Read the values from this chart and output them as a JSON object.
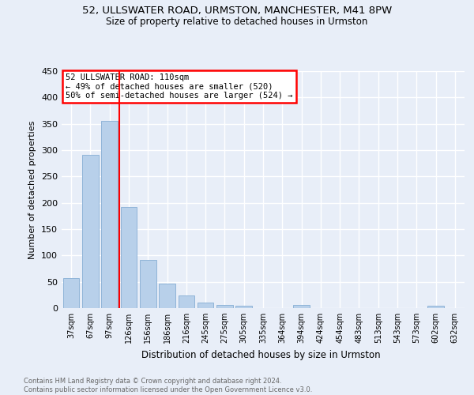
{
  "title1": "52, ULLSWATER ROAD, URMSTON, MANCHESTER, M41 8PW",
  "title2": "Size of property relative to detached houses in Urmston",
  "xlabel": "Distribution of detached houses by size in Urmston",
  "ylabel": "Number of detached properties",
  "footnote": "Contains HM Land Registry data © Crown copyright and database right 2024.\nContains public sector information licensed under the Open Government Licence v3.0.",
  "bar_labels": [
    "37sqm",
    "67sqm",
    "97sqm",
    "126sqm",
    "156sqm",
    "186sqm",
    "216sqm",
    "245sqm",
    "275sqm",
    "305sqm",
    "335sqm",
    "364sqm",
    "394sqm",
    "424sqm",
    "454sqm",
    "483sqm",
    "513sqm",
    "543sqm",
    "573sqm",
    "602sqm",
    "632sqm"
  ],
  "bar_values": [
    57,
    291,
    355,
    192,
    91,
    46,
    24,
    10,
    6,
    5,
    0,
    0,
    6,
    0,
    0,
    0,
    0,
    0,
    0,
    4,
    0
  ],
  "bar_color": "#b8d0ea",
  "bar_edge_color": "#90b4d8",
  "vline_x": 2.5,
  "vline_color": "red",
  "annotation_box_text": "52 ULLSWATER ROAD: 110sqm\n← 49% of detached houses are smaller (520)\n50% of semi-detached houses are larger (524) →",
  "annotation_box_facecolor": "white",
  "annotation_box_edgecolor": "red",
  "ylim": [
    0,
    450
  ],
  "yticks": [
    0,
    50,
    100,
    150,
    200,
    250,
    300,
    350,
    400,
    450
  ],
  "background_color": "#e8eef8",
  "plot_bg_color": "#e8eef8",
  "grid_color": "white",
  "title1_fontsize": 9.5,
  "title2_fontsize": 8.5,
  "xlabel_fontsize": 8.5,
  "ylabel_fontsize": 8,
  "tick_fontsize": 7,
  "annot_fontsize": 7.5,
  "footnote_fontsize": 6,
  "footnote_color": "#666666"
}
